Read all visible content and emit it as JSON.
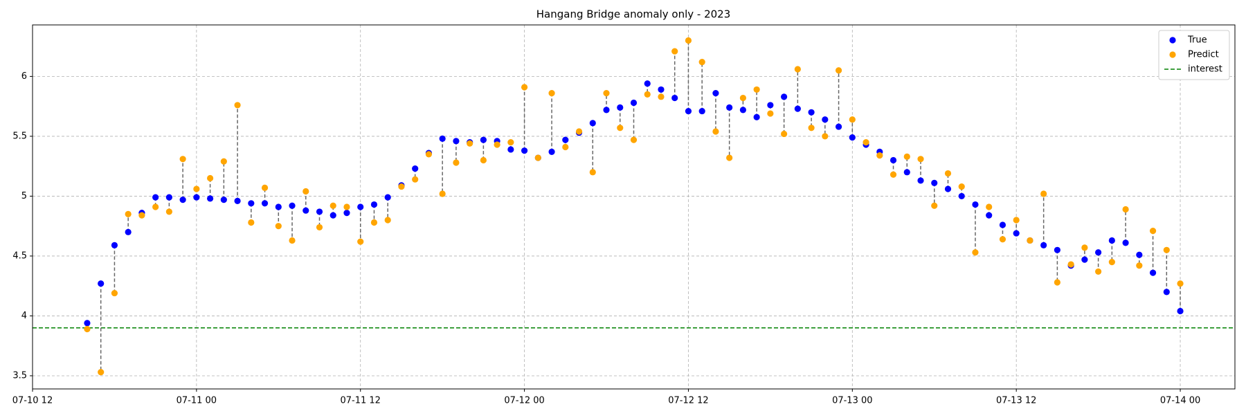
{
  "chart_data": {
    "type": "scatter",
    "title": "Hangang Bridge anomaly only - 2023",
    "x": [
      "07-10 16",
      "07-10 17",
      "07-10 18",
      "07-10 19",
      "07-10 20",
      "07-10 21",
      "07-10 22",
      "07-10 23",
      "07-11 00",
      "07-11 01",
      "07-11 02",
      "07-11 03",
      "07-11 04",
      "07-11 05",
      "07-11 06",
      "07-11 07",
      "07-11 08",
      "07-11 09",
      "07-11 10",
      "07-11 11",
      "07-11 12",
      "07-11 13",
      "07-11 14",
      "07-11 15",
      "07-11 16",
      "07-11 17",
      "07-11 18",
      "07-11 19",
      "07-11 20",
      "07-11 21",
      "07-11 22",
      "07-11 23",
      "07-12 00",
      "07-12 01",
      "07-12 02",
      "07-12 03",
      "07-12 04",
      "07-12 05",
      "07-12 06",
      "07-12 07",
      "07-12 08",
      "07-12 09",
      "07-12 10",
      "07-12 11",
      "07-12 12",
      "07-12 13",
      "07-12 14",
      "07-12 15",
      "07-12 16",
      "07-12 17",
      "07-12 18",
      "07-12 19",
      "07-12 20",
      "07-12 21",
      "07-12 22",
      "07-12 23",
      "07-13 00",
      "07-13 01",
      "07-13 02",
      "07-13 03",
      "07-13 04",
      "07-13 05",
      "07-13 06",
      "07-13 07",
      "07-13 08",
      "07-13 09",
      "07-13 10",
      "07-13 11",
      "07-13 12",
      "07-13 13",
      "07-13 14",
      "07-13 15",
      "07-13 16",
      "07-13 17",
      "07-13 18",
      "07-13 19",
      "07-13 20",
      "07-13 21",
      "07-13 22",
      "07-13 23",
      "07-14 00"
    ],
    "series": [
      {
        "name": "True",
        "color": "#0000ff",
        "values": [
          3.94,
          4.27,
          4.59,
          4.7,
          4.86,
          4.99,
          4.99,
          4.97,
          4.99,
          4.98,
          4.97,
          4.96,
          4.94,
          4.94,
          4.91,
          4.92,
          4.88,
          4.87,
          4.84,
          4.86,
          4.91,
          4.93,
          4.99,
          5.09,
          5.23,
          5.36,
          5.48,
          5.46,
          5.45,
          5.47,
          5.46,
          5.39,
          5.38,
          5.32,
          5.37,
          5.47,
          5.53,
          5.61,
          5.72,
          5.74,
          5.78,
          5.94,
          5.89,
          5.82,
          5.71,
          5.71,
          5.86,
          5.74,
          5.72,
          5.66,
          5.76,
          5.83,
          5.73,
          5.7,
          5.64,
          5.58,
          5.49,
          5.43,
          5.37,
          5.3,
          5.2,
          5.13,
          5.11,
          5.06,
          5.0,
          4.93,
          4.84,
          4.76,
          4.69,
          4.63,
          4.59,
          4.55,
          4.42,
          4.47,
          4.53,
          4.63,
          4.61,
          4.51,
          4.36,
          4.2,
          4.04
        ]
      },
      {
        "name": "Predict",
        "color": "#ffa500",
        "values": [
          3.89,
          3.53,
          4.19,
          4.85,
          4.84,
          4.91,
          4.87,
          5.31,
          5.06,
          5.15,
          5.29,
          5.76,
          4.78,
          5.07,
          4.75,
          4.63,
          5.04,
          4.74,
          4.92,
          4.91,
          4.62,
          4.78,
          4.8,
          5.08,
          5.14,
          5.35,
          5.02,
          5.28,
          5.44,
          5.3,
          5.43,
          5.45,
          5.91,
          5.32,
          5.86,
          5.41,
          5.54,
          5.2,
          5.86,
          5.57,
          5.47,
          5.85,
          5.83,
          6.21,
          6.3,
          6.12,
          5.54,
          5.32,
          5.82,
          5.89,
          5.69,
          5.52,
          6.06,
          5.57,
          5.5,
          6.05,
          5.64,
          5.45,
          5.34,
          5.18,
          5.33,
          5.31,
          4.92,
          5.19,
          5.08,
          4.53,
          4.91,
          4.64,
          4.8,
          4.63,
          5.02,
          4.28,
          4.43,
          4.57,
          4.37,
          4.45,
          4.89,
          4.42,
          4.71,
          4.55,
          4.27
        ]
      }
    ],
    "hlines": [
      {
        "name": "interest",
        "value": 3.9,
        "color": "#008000"
      }
    ],
    "xlim": [
      "07-10 12",
      "07-14 04"
    ],
    "xticks": [
      "07-10 12",
      "07-11 00",
      "07-11 12",
      "07-12 00",
      "07-12 12",
      "07-13 00",
      "07-13 12",
      "07-14 00"
    ],
    "ylim": [
      3.39,
      6.43
    ],
    "yticks": [
      3.5,
      4.0,
      4.5,
      5.0,
      5.5,
      6.0
    ],
    "grid": true,
    "legend": "upper right"
  }
}
